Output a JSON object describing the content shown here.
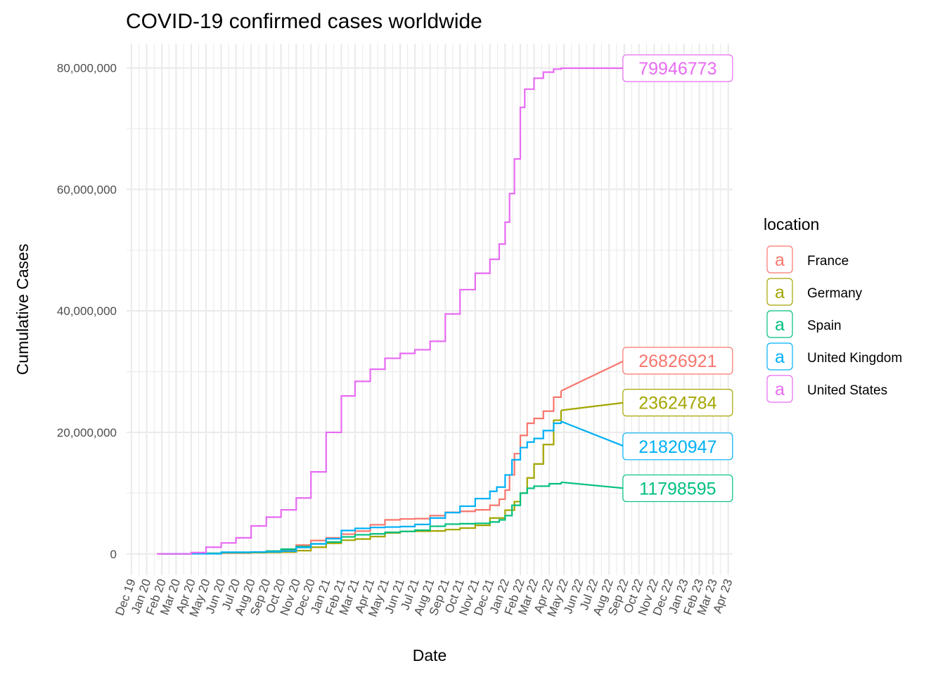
{
  "chart_data": {
    "type": "line",
    "title": "COVID-19 confirmed cases worldwide",
    "xlabel": "Date",
    "ylabel": "Cumulative Cases",
    "ylim": [
      -3500000,
      84000000
    ],
    "xlim": [
      "2019-11-21",
      "2023-04-10"
    ],
    "yticks": [
      0,
      20000000,
      40000000,
      60000000,
      80000000
    ],
    "ytick_labels": [
      "0",
      "20,000,000",
      "40,000,000",
      "60,000,000",
      "80,000,000"
    ],
    "xtick_labels": [
      "Dec 19",
      "Jan 20",
      "Feb 20",
      "Mar 20",
      "Apr 20",
      "May 20",
      "Jun 20",
      "Jul 20",
      "Aug 20",
      "Sep 20",
      "Oct 20",
      "Nov 20",
      "Dec 20",
      "Jan 21",
      "Feb 21",
      "Mar 21",
      "Apr 21",
      "May 21",
      "Jun 21",
      "Jul 21",
      "Aug 21",
      "Sep 21",
      "Oct 21",
      "Nov 21",
      "Dec 21",
      "Jan 22",
      "Feb 22",
      "Mar 22",
      "Apr 22",
      "May 22",
      "Jun 22",
      "Jul 22",
      "Aug 22",
      "Sep 22",
      "Oct 22",
      "Nov 22",
      "Dec 22",
      "Jan 23",
      "Feb 23",
      "Mar 23",
      "Apr 23"
    ],
    "grid": true,
    "legend_title": "location",
    "legend_position": "right",
    "label_date": "2022-09-01",
    "series": [
      {
        "name": "France",
        "color": "#F8766D",
        "end_label": "26826921",
        "end_value": 26826921,
        "label_y": 31800000,
        "points": [
          [
            "2020-01-24",
            0
          ],
          [
            "2020-03-01",
            100
          ],
          [
            "2020-04-01",
            52000
          ],
          [
            "2020-06-01",
            150000
          ],
          [
            "2020-08-01",
            220000
          ],
          [
            "2020-09-01",
            300000
          ],
          [
            "2020-10-01",
            620000
          ],
          [
            "2020-11-01",
            1450000
          ],
          [
            "2020-12-01",
            2200000
          ],
          [
            "2021-01-01",
            2650000
          ],
          [
            "2021-02-01",
            3250000
          ],
          [
            "2021-03-01",
            3750000
          ],
          [
            "2021-04-01",
            4800000
          ],
          [
            "2021-05-01",
            5600000
          ],
          [
            "2021-06-01",
            5750000
          ],
          [
            "2021-07-01",
            5800000
          ],
          [
            "2021-08-01",
            6300000
          ],
          [
            "2021-09-01",
            6850000
          ],
          [
            "2021-10-01",
            7000000
          ],
          [
            "2021-11-01",
            7250000
          ],
          [
            "2021-12-01",
            8000000
          ],
          [
            "2021-12-20",
            9000000
          ],
          [
            "2022-01-01",
            10500000
          ],
          [
            "2022-01-10",
            13000000
          ],
          [
            "2022-01-20",
            16500000
          ],
          [
            "2022-02-01",
            19500000
          ],
          [
            "2022-02-15",
            21500000
          ],
          [
            "2022-03-01",
            22300000
          ],
          [
            "2022-03-20",
            23500000
          ],
          [
            "2022-04-10",
            25800000
          ],
          [
            "2022-04-25",
            26826921
          ]
        ]
      },
      {
        "name": "Germany",
        "color": "#A3A500",
        "end_label": "23624784",
        "end_value": 23624784,
        "label_y": 24900000,
        "points": [
          [
            "2020-01-27",
            0
          ],
          [
            "2020-03-01",
            130
          ],
          [
            "2020-04-01",
            77000
          ],
          [
            "2020-06-01",
            180000
          ],
          [
            "2020-08-01",
            210000
          ],
          [
            "2020-09-01",
            240000
          ],
          [
            "2020-10-01",
            300000
          ],
          [
            "2020-11-01",
            540000
          ],
          [
            "2020-12-01",
            1100000
          ],
          [
            "2021-01-01",
            1750000
          ],
          [
            "2021-02-01",
            2250000
          ],
          [
            "2021-03-01",
            2450000
          ],
          [
            "2021-04-01",
            2850000
          ],
          [
            "2021-05-01",
            3450000
          ],
          [
            "2021-06-01",
            3700000
          ],
          [
            "2021-07-01",
            3730000
          ],
          [
            "2021-08-01",
            3780000
          ],
          [
            "2021-09-01",
            4000000
          ],
          [
            "2021-10-01",
            4250000
          ],
          [
            "2021-11-01",
            4700000
          ],
          [
            "2021-12-01",
            5900000
          ],
          [
            "2022-01-01",
            7200000
          ],
          [
            "2022-01-20",
            8600000
          ],
          [
            "2022-02-01",
            10000000
          ],
          [
            "2022-02-15",
            12500000
          ],
          [
            "2022-03-01",
            14800000
          ],
          [
            "2022-03-20",
            18000000
          ],
          [
            "2022-04-10",
            22000000
          ],
          [
            "2022-04-25",
            23624784
          ]
        ]
      },
      {
        "name": "Spain",
        "color": "#00BF7D",
        "end_label": "11798595",
        "end_value": 11798595,
        "label_y": 10800000,
        "points": [
          [
            "2020-02-01",
            0
          ],
          [
            "2020-03-01",
            80
          ],
          [
            "2020-04-01",
            100000
          ],
          [
            "2020-06-01",
            240000
          ],
          [
            "2020-08-01",
            300000
          ],
          [
            "2020-09-01",
            470000
          ],
          [
            "2020-10-01",
            780000
          ],
          [
            "2020-11-01",
            1200000
          ],
          [
            "2020-12-01",
            1650000
          ],
          [
            "2021-01-01",
            1950000
          ],
          [
            "2021-02-01",
            2800000
          ],
          [
            "2021-03-01",
            3150000
          ],
          [
            "2021-04-01",
            3300000
          ],
          [
            "2021-05-01",
            3550000
          ],
          [
            "2021-06-01",
            3700000
          ],
          [
            "2021-07-01",
            3900000
          ],
          [
            "2021-08-01",
            4550000
          ],
          [
            "2021-09-01",
            4900000
          ],
          [
            "2021-10-01",
            4960000
          ],
          [
            "2021-11-01",
            5030000
          ],
          [
            "2021-12-01",
            5250000
          ],
          [
            "2021-12-20",
            5600000
          ],
          [
            "2022-01-01",
            6300000
          ],
          [
            "2022-01-15",
            8000000
          ],
          [
            "2022-02-01",
            10000000
          ],
          [
            "2022-02-15",
            10800000
          ],
          [
            "2022-03-01",
            11150000
          ],
          [
            "2022-04-01",
            11550000
          ],
          [
            "2022-04-25",
            11798595
          ]
        ]
      },
      {
        "name": "United Kingdom",
        "color": "#00B0F6",
        "end_label": "21820947",
        "end_value": 21820947,
        "label_y": 17700000,
        "points": [
          [
            "2020-01-31",
            0
          ],
          [
            "2020-03-01",
            40
          ],
          [
            "2020-04-01",
            30000
          ],
          [
            "2020-06-01",
            280000
          ],
          [
            "2020-08-01",
            310000
          ],
          [
            "2020-09-01",
            340000
          ],
          [
            "2020-10-01",
            460000
          ],
          [
            "2020-11-01",
            1050000
          ],
          [
            "2020-12-01",
            1650000
          ],
          [
            "2021-01-01",
            2500000
          ],
          [
            "2021-02-01",
            3850000
          ],
          [
            "2021-03-01",
            4200000
          ],
          [
            "2021-04-01",
            4350000
          ],
          [
            "2021-05-01",
            4420000
          ],
          [
            "2021-06-01",
            4500000
          ],
          [
            "2021-07-01",
            4850000
          ],
          [
            "2021-08-01",
            5900000
          ],
          [
            "2021-09-01",
            6800000
          ],
          [
            "2021-10-01",
            7850000
          ],
          [
            "2021-11-01",
            9100000
          ],
          [
            "2021-12-01",
            10300000
          ],
          [
            "2021-12-15",
            11000000
          ],
          [
            "2022-01-01",
            13000000
          ],
          [
            "2022-01-15",
            15500000
          ],
          [
            "2022-02-01",
            17500000
          ],
          [
            "2022-02-15",
            18400000
          ],
          [
            "2022-03-01",
            19000000
          ],
          [
            "2022-03-20",
            20300000
          ],
          [
            "2022-04-10",
            21500000
          ],
          [
            "2022-04-25",
            21820947
          ]
        ]
      },
      {
        "name": "United States",
        "color": "#E76BF3",
        "end_label": "79946773",
        "end_value": 79946773,
        "label_y": 79946773,
        "points": [
          [
            "2020-01-22",
            0
          ],
          [
            "2020-03-01",
            75
          ],
          [
            "2020-04-01",
            220000
          ],
          [
            "2020-05-01",
            1100000
          ],
          [
            "2020-06-01",
            1800000
          ],
          [
            "2020-07-01",
            2650000
          ],
          [
            "2020-08-01",
            4600000
          ],
          [
            "2020-09-01",
            6050000
          ],
          [
            "2020-10-01",
            7250000
          ],
          [
            "2020-11-01",
            9200000
          ],
          [
            "2020-12-01",
            13500000
          ],
          [
            "2021-01-01",
            20000000
          ],
          [
            "2021-02-01",
            26000000
          ],
          [
            "2021-03-01",
            28400000
          ],
          [
            "2021-04-01",
            30400000
          ],
          [
            "2021-05-01",
            32200000
          ],
          [
            "2021-06-01",
            33000000
          ],
          [
            "2021-07-01",
            33600000
          ],
          [
            "2021-08-01",
            35000000
          ],
          [
            "2021-09-01",
            39500000
          ],
          [
            "2021-10-01",
            43500000
          ],
          [
            "2021-11-01",
            46200000
          ],
          [
            "2021-12-01",
            48500000
          ],
          [
            "2021-12-20",
            51000000
          ],
          [
            "2022-01-01",
            54600000
          ],
          [
            "2022-01-10",
            59300000
          ],
          [
            "2022-01-20",
            65000000
          ],
          [
            "2022-02-01",
            73500000
          ],
          [
            "2022-02-10",
            76500000
          ],
          [
            "2022-03-01",
            78300000
          ],
          [
            "2022-03-20",
            79300000
          ],
          [
            "2022-04-10",
            79800000
          ],
          [
            "2022-04-25",
            79946773
          ],
          [
            "2022-09-01",
            79946773
          ]
        ]
      }
    ]
  }
}
